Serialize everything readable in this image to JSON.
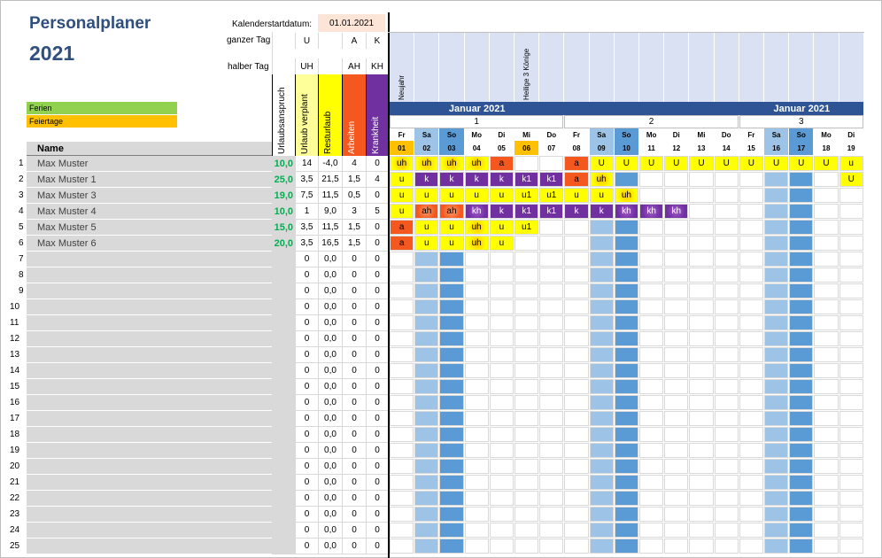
{
  "title": "Personalplaner",
  "year": "2021",
  "start_label": "Kalenderstartdatum:",
  "start_value": "01.01.2021",
  "ganzer_label": "ganzer Tag",
  "halber_label": "halber Tag",
  "codes_full": [
    "U",
    "",
    "A",
    "K"
  ],
  "codes_half": [
    "UH",
    "",
    "AH",
    "KH"
  ],
  "legend": [
    {
      "label": "Ferien",
      "color": "#92d050"
    },
    {
      "label": "Feiertage",
      "color": "#ffc000"
    }
  ],
  "columns": {
    "name": "Name",
    "urlaubsanspruch": "Urlaubsanspruch",
    "verplant": "Urlaub verplant",
    "resturlaub": "Resturlaub",
    "arbeiten": "Arbeiten",
    "krankheit": "Krankheit"
  },
  "holidays": [
    {
      "day": 0,
      "label": "Neujahr"
    },
    {
      "day": 5,
      "label": "Heilige 3 Könige"
    }
  ],
  "month_banners": [
    {
      "label": "Januar 2021",
      "start": 0,
      "span": 7
    },
    {
      "label": "Januar 2021",
      "start": 14,
      "span": 5
    }
  ],
  "weeks": [
    {
      "label": "1",
      "start": 0,
      "span": 7
    },
    {
      "label": "2",
      "start": 7,
      "span": 7
    },
    {
      "label": "3",
      "start": 14,
      "span": 5
    }
  ],
  "days": [
    {
      "dow": "Fr",
      "num": "01"
    },
    {
      "dow": "Sa",
      "num": "02"
    },
    {
      "dow": "So",
      "num": "03"
    },
    {
      "dow": "Mo",
      "num": "04"
    },
    {
      "dow": "Di",
      "num": "05"
    },
    {
      "dow": "Mi",
      "num": "06"
    },
    {
      "dow": "Do",
      "num": "07"
    },
    {
      "dow": "Fr",
      "num": "08"
    },
    {
      "dow": "Sa",
      "num": "09"
    },
    {
      "dow": "So",
      "num": "10"
    },
    {
      "dow": "Mo",
      "num": "11"
    },
    {
      "dow": "Di",
      "num": "12"
    },
    {
      "dow": "Mi",
      "num": "13"
    },
    {
      "dow": "Do",
      "num": "14"
    },
    {
      "dow": "Fr",
      "num": "15"
    },
    {
      "dow": "Sa",
      "num": "16"
    },
    {
      "dow": "So",
      "num": "17"
    },
    {
      "dow": "Mo",
      "num": "18"
    },
    {
      "dow": "Di",
      "num": "19"
    }
  ],
  "employees": [
    {
      "name": "Max Muster",
      "anspruch": "10,0",
      "verplant": "14",
      "rest": "-4,0",
      "arbeiten": "4",
      "krank": "0",
      "days": [
        "uh",
        "uh",
        "uh",
        "uh",
        "a",
        "",
        "",
        "a",
        "U",
        "U",
        "U",
        "U",
        "U",
        "U",
        "U",
        "U",
        "U",
        "U",
        "u"
      ]
    },
    {
      "name": "Max Muster 1",
      "anspruch": "25,0",
      "verplant": "3,5",
      "rest": "21,5",
      "arbeiten": "1,5",
      "krank": "4",
      "days": [
        "u",
        "k",
        "k",
        "k",
        "k",
        "k1",
        "k1",
        "a",
        "uh",
        "",
        "",
        "",
        "",
        "",
        "",
        "",
        "",
        "",
        "U"
      ]
    },
    {
      "name": "Max Muster 3",
      "anspruch": "19,0",
      "verplant": "7,5",
      "rest": "11,5",
      "arbeiten": "0,5",
      "krank": "0",
      "days": [
        "u",
        "u",
        "u",
        "u",
        "u",
        "u1",
        "u1",
        "u",
        "u",
        "uh",
        "",
        "",
        "",
        "",
        "",
        "",
        "",
        "",
        ""
      ]
    },
    {
      "name": "Max Muster 4",
      "anspruch": "10,0",
      "verplant": "1",
      "rest": "9,0",
      "arbeiten": "3",
      "krank": "5",
      "days": [
        "u",
        "ah",
        "ah",
        "kh",
        "k",
        "k1",
        "k1",
        "k",
        "k",
        "kh",
        "kh",
        "kh",
        "",
        "",
        "",
        "",
        "",
        "",
        ""
      ]
    },
    {
      "name": "Max Muster 5",
      "anspruch": "15,0",
      "verplant": "3,5",
      "rest": "11,5",
      "arbeiten": "1,5",
      "krank": "0",
      "days": [
        "a",
        "u",
        "u",
        "uh",
        "u",
        "u1",
        "",
        "",
        "",
        "",
        "",
        "",
        "",
        "",
        "",
        "",
        "",
        "",
        ""
      ]
    },
    {
      "name": "Max Muster 6",
      "anspruch": "20,0",
      "verplant": "3,5",
      "rest": "16,5",
      "arbeiten": "1,5",
      "krank": "0",
      "days": [
        "a",
        "u",
        "u",
        "uh",
        "u",
        "",
        "",
        "",
        "",
        "",
        "",
        "",
        "",
        "",
        "",
        "",
        "",
        "",
        ""
      ]
    }
  ],
  "empty_defaults": {
    "verplant": "0",
    "rest": "0,0",
    "arbeiten": "0",
    "krank": "0"
  },
  "row_numbers": [
    "1",
    "2",
    "3",
    "4",
    "5",
    "6",
    "7",
    "8",
    "9",
    "10",
    "11",
    "12",
    "13",
    "14",
    "15",
    "16",
    "17",
    "18",
    "19",
    "20",
    "21",
    "22",
    "23",
    "24",
    "25"
  ],
  "colors": {
    "title": "#2f4f7f",
    "header_blue": "#dae1f3",
    "banner": "#2f5496",
    "weekend_sat": "#9dc3e6",
    "weekend_sun": "#5b9bd5",
    "holiday": "#ffc000",
    "verplant_bg": "#ffff99",
    "rest_bg": "#ffff00",
    "arbeiten_bg": "#f4581f",
    "krank_bg": "#7030a0",
    "u": "#ffff00",
    "a": "#f4581f",
    "k": "#7030a0",
    "anspruch_text": "#00b050"
  }
}
